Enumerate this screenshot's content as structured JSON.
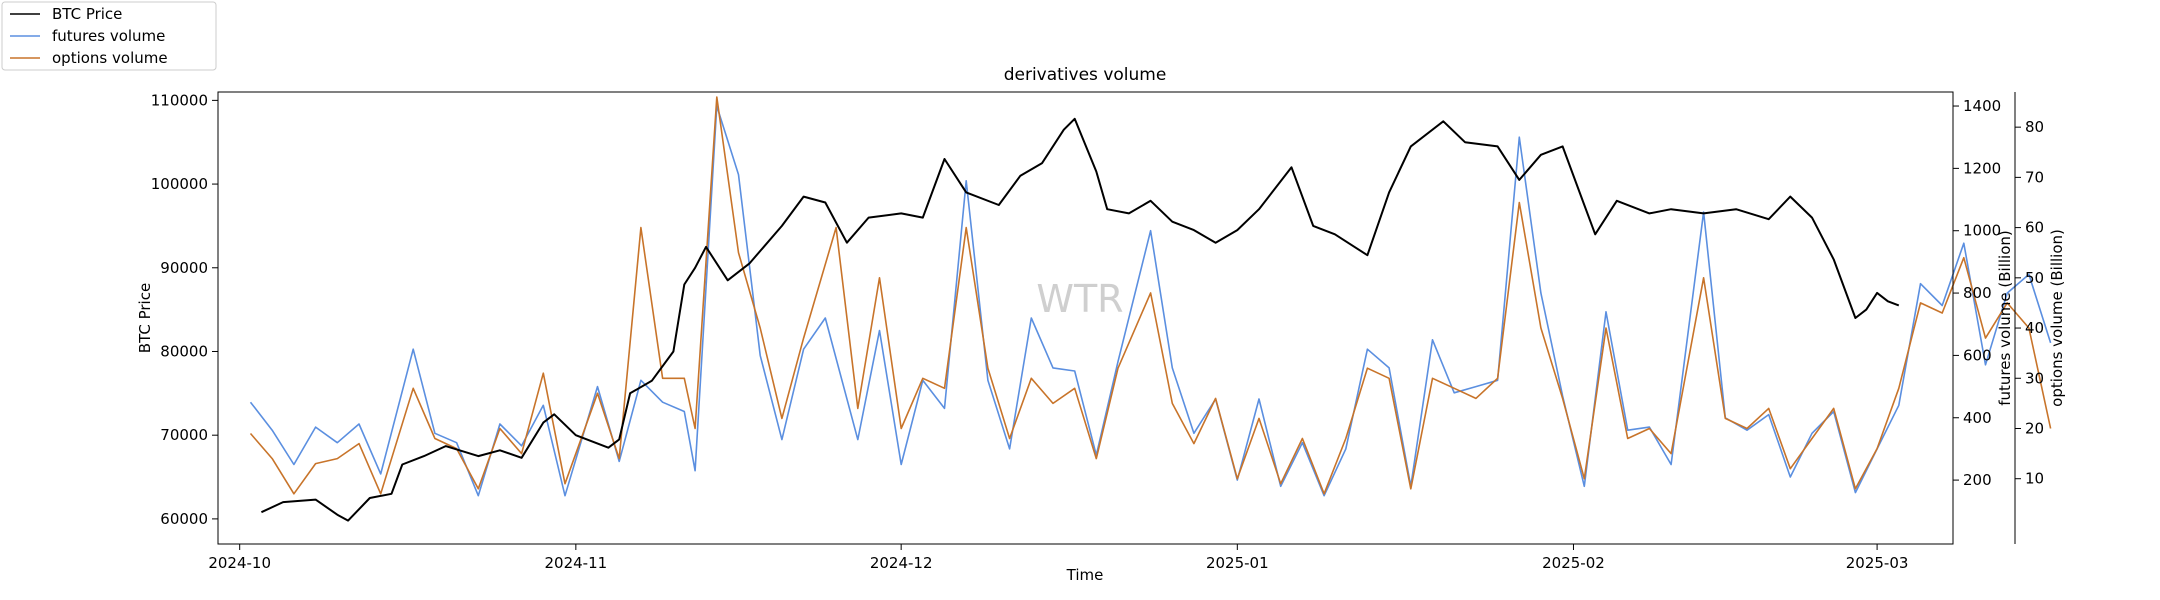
{
  "chart_data": {
    "type": "line",
    "title": "derivatives volume",
    "xlabel": "Time",
    "ylabel": "BTC Price",
    "y2label": "futures volume (Billion)",
    "y3label": "options volume (Billion)",
    "watermark": "WTR",
    "legend_placement": "top-left, outside plot",
    "grid": false,
    "xlim": [
      "2024-09-29",
      "2025-03-08"
    ],
    "ylim": [
      57000,
      111000
    ],
    "y2lim": [
      -5,
      1445
    ],
    "y3lim": [
      -3,
      87
    ],
    "x_ticks": [
      {
        "date": "2024-10-01",
        "label": "2024-10"
      },
      {
        "date": "2024-11-01",
        "label": "2024-11"
      },
      {
        "date": "2024-12-01",
        "label": "2024-12"
      },
      {
        "date": "2025-01-01",
        "label": "2025-01"
      },
      {
        "date": "2025-02-01",
        "label": "2025-02"
      },
      {
        "date": "2025-03-01",
        "label": "2025-03"
      }
    ],
    "y_ticks": [
      60000,
      70000,
      80000,
      90000,
      100000,
      110000
    ],
    "y2_ticks": [
      200,
      400,
      600,
      800,
      1000,
      1200,
      1400
    ],
    "y3_ticks": [
      10,
      20,
      30,
      40,
      50,
      60,
      70,
      80
    ],
    "series": [
      {
        "name": "BTC Price",
        "color": "#000000",
        "axis": "left",
        "points": [
          [
            "2024-10-03",
            60800
          ],
          [
            "2024-10-05",
            62000
          ],
          [
            "2024-10-08",
            62300
          ],
          [
            "2024-10-10",
            60500
          ],
          [
            "2024-10-11",
            59800
          ],
          [
            "2024-10-13",
            62500
          ],
          [
            "2024-10-15",
            63000
          ],
          [
            "2024-10-16",
            66500
          ],
          [
            "2024-10-18",
            67500
          ],
          [
            "2024-10-20",
            68700
          ],
          [
            "2024-10-23",
            67500
          ],
          [
            "2024-10-25",
            68200
          ],
          [
            "2024-10-27",
            67300
          ],
          [
            "2024-10-29",
            71500
          ],
          [
            "2024-10-30",
            72500
          ],
          [
            "2024-11-01",
            70000
          ],
          [
            "2024-11-04",
            68500
          ],
          [
            "2024-11-05",
            69500
          ],
          [
            "2024-11-06",
            75000
          ],
          [
            "2024-11-08",
            76500
          ],
          [
            "2024-11-10",
            80000
          ],
          [
            "2024-11-11",
            88000
          ],
          [
            "2024-11-12",
            90000
          ],
          [
            "2024-11-13",
            92500
          ],
          [
            "2024-11-15",
            88500
          ],
          [
            "2024-11-17",
            90500
          ],
          [
            "2024-11-20",
            95000
          ],
          [
            "2024-11-22",
            98500
          ],
          [
            "2024-11-24",
            97800
          ],
          [
            "2024-11-26",
            93000
          ],
          [
            "2024-11-28",
            96000
          ],
          [
            "2024-12-01",
            96500
          ],
          [
            "2024-12-03",
            96000
          ],
          [
            "2024-12-05",
            103000
          ],
          [
            "2024-12-07",
            99000
          ],
          [
            "2024-12-10",
            97500
          ],
          [
            "2024-12-12",
            101000
          ],
          [
            "2024-12-14",
            102500
          ],
          [
            "2024-12-16",
            106500
          ],
          [
            "2024-12-17",
            107800
          ],
          [
            "2024-12-19",
            101500
          ],
          [
            "2024-12-20",
            97000
          ],
          [
            "2024-12-22",
            96500
          ],
          [
            "2024-12-24",
            98000
          ],
          [
            "2024-12-26",
            95500
          ],
          [
            "2024-12-28",
            94500
          ],
          [
            "2024-12-30",
            93000
          ],
          [
            "2025-01-01",
            94500
          ],
          [
            "2025-01-03",
            97000
          ],
          [
            "2025-01-06",
            102000
          ],
          [
            "2025-01-08",
            95000
          ],
          [
            "2025-01-10",
            94000
          ],
          [
            "2025-01-13",
            91500
          ],
          [
            "2025-01-15",
            99000
          ],
          [
            "2025-01-17",
            104500
          ],
          [
            "2025-01-20",
            107500
          ],
          [
            "2025-01-22",
            105000
          ],
          [
            "2025-01-25",
            104500
          ],
          [
            "2025-01-27",
            100500
          ],
          [
            "2025-01-29",
            103500
          ],
          [
            "2025-01-31",
            104500
          ],
          [
            "2025-02-02",
            97500
          ],
          [
            "2025-02-03",
            94000
          ],
          [
            "2025-02-05",
            98000
          ],
          [
            "2025-02-08",
            96500
          ],
          [
            "2025-02-10",
            97000
          ],
          [
            "2025-02-13",
            96500
          ],
          [
            "2025-02-16",
            97000
          ],
          [
            "2025-02-19",
            95800
          ],
          [
            "2025-02-21",
            98500
          ],
          [
            "2025-02-23",
            96000
          ],
          [
            "2025-02-25",
            91000
          ],
          [
            "2025-02-27",
            84000
          ],
          [
            "2025-02-28",
            85000
          ],
          [
            "2025-03-01",
            87000
          ],
          [
            "2025-03-02",
            86000
          ],
          [
            "2025-03-03",
            85500
          ]
        ]
      },
      {
        "name": "futures volume",
        "color": "#5b8fe0",
        "axis": "right",
        "points": [
          [
            "2024-10-02",
            450
          ],
          [
            "2024-10-04",
            360
          ],
          [
            "2024-10-06",
            250
          ],
          [
            "2024-10-08",
            370
          ],
          [
            "2024-10-10",
            320
          ],
          [
            "2024-10-12",
            380
          ],
          [
            "2024-10-14",
            220
          ],
          [
            "2024-10-17",
            620
          ],
          [
            "2024-10-19",
            350
          ],
          [
            "2024-10-21",
            320
          ],
          [
            "2024-10-23",
            150
          ],
          [
            "2024-10-25",
            380
          ],
          [
            "2024-10-27",
            310
          ],
          [
            "2024-10-29",
            440
          ],
          [
            "2024-10-31",
            150
          ],
          [
            "2024-11-03",
            500
          ],
          [
            "2024-11-05",
            260
          ],
          [
            "2024-11-07",
            520
          ],
          [
            "2024-11-09",
            450
          ],
          [
            "2024-11-11",
            420
          ],
          [
            "2024-11-12",
            230
          ],
          [
            "2024-11-14",
            1400
          ],
          [
            "2024-11-16",
            1180
          ],
          [
            "2024-11-18",
            600
          ],
          [
            "2024-11-20",
            330
          ],
          [
            "2024-11-22",
            620
          ],
          [
            "2024-11-24",
            720
          ],
          [
            "2024-11-27",
            330
          ],
          [
            "2024-11-29",
            680
          ],
          [
            "2024-12-01",
            250
          ],
          [
            "2024-12-03",
            520
          ],
          [
            "2024-12-05",
            430
          ],
          [
            "2024-12-07",
            1160
          ],
          [
            "2024-12-09",
            520
          ],
          [
            "2024-12-11",
            300
          ],
          [
            "2024-12-13",
            720
          ],
          [
            "2024-12-15",
            560
          ],
          [
            "2024-12-17",
            550
          ],
          [
            "2024-12-19",
            280
          ],
          [
            "2024-12-21",
            580
          ],
          [
            "2024-12-24",
            1000
          ],
          [
            "2024-12-26",
            560
          ],
          [
            "2024-12-28",
            350
          ],
          [
            "2024-12-30",
            460
          ],
          [
            "2025-01-01",
            200
          ],
          [
            "2025-01-03",
            460
          ],
          [
            "2025-01-05",
            180
          ],
          [
            "2025-01-07",
            320
          ],
          [
            "2025-01-09",
            150
          ],
          [
            "2025-01-11",
            300
          ],
          [
            "2025-01-13",
            620
          ],
          [
            "2025-01-15",
            560
          ],
          [
            "2025-01-17",
            180
          ],
          [
            "2025-01-19",
            650
          ],
          [
            "2025-01-21",
            480
          ],
          [
            "2025-01-23",
            500
          ],
          [
            "2025-01-25",
            520
          ],
          [
            "2025-01-27",
            1300
          ],
          [
            "2025-01-29",
            800
          ],
          [
            "2025-01-31",
            470
          ],
          [
            "2025-02-02",
            180
          ],
          [
            "2025-02-04",
            740
          ],
          [
            "2025-02-06",
            360
          ],
          [
            "2025-02-08",
            370
          ],
          [
            "2025-02-10",
            250
          ],
          [
            "2025-02-13",
            1060
          ],
          [
            "2025-02-15",
            400
          ],
          [
            "2025-02-17",
            360
          ],
          [
            "2025-02-19",
            410
          ],
          [
            "2025-02-21",
            210
          ],
          [
            "2025-02-23",
            350
          ],
          [
            "2025-02-25",
            420
          ],
          [
            "2025-02-27",
            160
          ],
          [
            "2025-02-29",
            300
          ],
          [
            "2025-03-03",
            440
          ],
          [
            "2025-03-05",
            830
          ],
          [
            "2025-03-07",
            760
          ],
          [
            "2025-03-09",
            960
          ],
          [
            "2025-03-11",
            570
          ],
          [
            "2025-03-13",
            800
          ],
          [
            "2025-03-15",
            860
          ],
          [
            "2025-03-17",
            640
          ]
        ]
      },
      {
        "name": "options volume",
        "color": "#c8742a",
        "axis": "right-outer",
        "points": [
          [
            "2024-10-02",
            19
          ],
          [
            "2024-10-04",
            14
          ],
          [
            "2024-10-06",
            7
          ],
          [
            "2024-10-08",
            13
          ],
          [
            "2024-10-10",
            14
          ],
          [
            "2024-10-12",
            17
          ],
          [
            "2024-10-14",
            7
          ],
          [
            "2024-10-17",
            28
          ],
          [
            "2024-10-19",
            18
          ],
          [
            "2024-10-21",
            16
          ],
          [
            "2024-10-23",
            8
          ],
          [
            "2024-10-25",
            20
          ],
          [
            "2024-10-27",
            15
          ],
          [
            "2024-10-29",
            31
          ],
          [
            "2024-10-31",
            9
          ],
          [
            "2024-11-03",
            27
          ],
          [
            "2024-11-05",
            14
          ],
          [
            "2024-11-07",
            60
          ],
          [
            "2024-11-09",
            30
          ],
          [
            "2024-11-11",
            30
          ],
          [
            "2024-11-12",
            20
          ],
          [
            "2024-11-14",
            86
          ],
          [
            "2024-11-16",
            55
          ],
          [
            "2024-11-18",
            40
          ],
          [
            "2024-11-20",
            22
          ],
          [
            "2024-11-22",
            38
          ],
          [
            "2024-11-25",
            60
          ],
          [
            "2024-11-27",
            24
          ],
          [
            "2024-11-29",
            50
          ],
          [
            "2024-12-01",
            20
          ],
          [
            "2024-12-03",
            30
          ],
          [
            "2024-12-05",
            28
          ],
          [
            "2024-12-07",
            60
          ],
          [
            "2024-12-09",
            32
          ],
          [
            "2024-12-11",
            18
          ],
          [
            "2024-12-13",
            30
          ],
          [
            "2024-12-15",
            25
          ],
          [
            "2024-12-17",
            28
          ],
          [
            "2024-12-19",
            14
          ],
          [
            "2024-12-21",
            32
          ],
          [
            "2024-12-24",
            47
          ],
          [
            "2024-12-26",
            25
          ],
          [
            "2024-12-28",
            17
          ],
          [
            "2024-12-30",
            26
          ],
          [
            "2025-01-01",
            10
          ],
          [
            "2025-01-03",
            22
          ],
          [
            "2025-01-05",
            9
          ],
          [
            "2025-01-07",
            18
          ],
          [
            "2025-01-09",
            7
          ],
          [
            "2025-01-11",
            18
          ],
          [
            "2025-01-13",
            32
          ],
          [
            "2025-01-15",
            30
          ],
          [
            "2025-01-17",
            8
          ],
          [
            "2025-01-19",
            30
          ],
          [
            "2025-01-21",
            28
          ],
          [
            "2025-01-23",
            26
          ],
          [
            "2025-01-25",
            30
          ],
          [
            "2025-01-27",
            65
          ],
          [
            "2025-01-29",
            40
          ],
          [
            "2025-01-31",
            26
          ],
          [
            "2025-02-02",
            10
          ],
          [
            "2025-02-04",
            40
          ],
          [
            "2025-02-06",
            18
          ],
          [
            "2025-02-08",
            20
          ],
          [
            "2025-02-10",
            15
          ],
          [
            "2025-02-13",
            50
          ],
          [
            "2025-02-15",
            22
          ],
          [
            "2025-02-17",
            20
          ],
          [
            "2025-02-19",
            24
          ],
          [
            "2025-02-21",
            12
          ],
          [
            "2025-02-23",
            18
          ],
          [
            "2025-02-25",
            24
          ],
          [
            "2025-02-27",
            8
          ],
          [
            "2025-02-29",
            16
          ],
          [
            "2025-03-03",
            28
          ],
          [
            "2025-03-05",
            45
          ],
          [
            "2025-03-07",
            43
          ],
          [
            "2025-03-09",
            54
          ],
          [
            "2025-03-11",
            38
          ],
          [
            "2025-03-13",
            45
          ],
          [
            "2025-03-15",
            40
          ],
          [
            "2025-03-17",
            20
          ]
        ]
      }
    ]
  }
}
